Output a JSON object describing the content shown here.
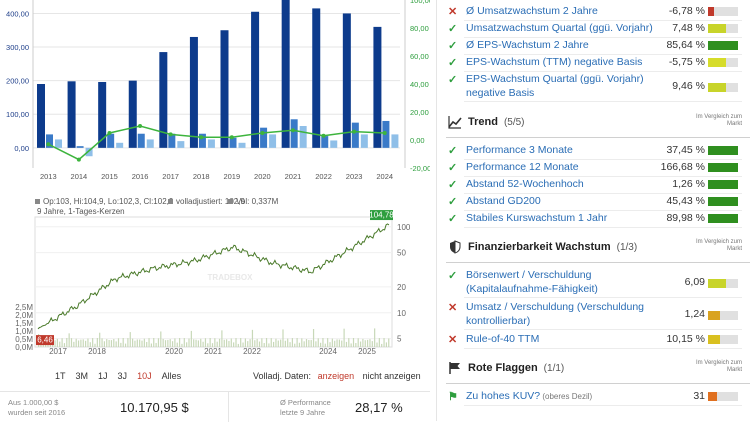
{
  "bar_chart": {
    "chart_data": {
      "type": "bar",
      "categories": [
        "2013",
        "2014",
        "2015",
        "2016",
        "2017",
        "2018",
        "2019",
        "2020",
        "2021",
        "2022",
        "2023",
        "2024"
      ],
      "series": [
        {
          "values": [
            190,
            198,
            196,
            200,
            285,
            330,
            350,
            405,
            445,
            415,
            400,
            360
          ]
        },
        {
          "values": [
            40,
            5,
            42,
            42,
            42,
            42,
            30,
            60,
            85,
            35,
            75,
            80
          ]
        },
        {
          "values": [
            25,
            -25,
            15,
            25,
            20,
            25,
            15,
            40,
            65,
            22,
            40,
            40
          ]
        }
      ],
      "growth_line": [
        -3,
        -14,
        5,
        10,
        4,
        2,
        2,
        5,
        7,
        3,
        6,
        5
      ],
      "y_left_ticks": [
        "0,00",
        "100,00",
        "200,00",
        "300,00",
        "400,00"
      ],
      "y_right_ticks": [
        "-20,00",
        "0,00",
        "20,00",
        "40,00",
        "60,00",
        "80,00",
        "100,00"
      ],
      "ylim": [
        -60,
        440
      ],
      "y2lim": [
        -20,
        100
      ]
    },
    "colors": {
      "dark": "#0d3b8c",
      "mid": "#3a7ac8",
      "light": "#8fbfe8",
      "line": "#3db43d"
    }
  },
  "price_chart": {
    "legend": [
      "Op:103, Hi:104,9, Lo:102,3, Cl:102,9",
      "volladjustiert: 102,9",
      "Vol: 0,337M"
    ],
    "subtitle": "9 Jahre, 1-Tages-Kerzen",
    "watermark": "TRADEBOX",
    "last_price": "104,78",
    "first_price": "6,46",
    "x_ticks": [
      "2017",
      "2018",
      "2020",
      "2021",
      "2022",
      "2024",
      "2025"
    ],
    "y_right_ticks": [
      "100",
      "50",
      "20",
      "10",
      "5"
    ],
    "y_left_ticks": [
      "2,5M",
      "2,0M",
      "1,5M",
      "1,0M",
      "0,5M",
      "0,0M"
    ],
    "chart_data": {
      "type": "line",
      "log_scale": true,
      "x": [
        "2016",
        "2017",
        "2018",
        "2019",
        "2020",
        "2021",
        "2022",
        "2023",
        "2024",
        "2025"
      ],
      "values": [
        6.5,
        12,
        25,
        33,
        40,
        58,
        38,
        30,
        55,
        104.8
      ]
    }
  },
  "ranges": [
    "1T",
    "3M",
    "1J",
    "3J",
    "10J",
    "Alles"
  ],
  "ranges_active": "10J",
  "volladj": {
    "label": "Volladj. Daten:",
    "on": "anzeigen",
    "off": "nicht anzeigen"
  },
  "footer": {
    "left_label_1": "Aus 1.000,00 $",
    "left_label_2": "wurden seit 2016",
    "left_value": "10.170,95 $",
    "right_label_1": "Ø Performance",
    "right_label_2": "letzte 9 Jahre",
    "right_value": "28,17 %"
  },
  "growth_rows": [
    {
      "label": "Ø Umsatzwachstum 2 Jahre",
      "value": "-6,78 %",
      "status": "bad",
      "fill": 0.2,
      "color": "#c0392b"
    },
    {
      "label": "Umsatzwachstum Quartal (ggü. Vorjahr)",
      "value": "7,48 %",
      "status": "ok",
      "fill": 0.6,
      "color": "#c8d42a"
    },
    {
      "label": "Ø EPS-Wachstum 2 Jahre",
      "value": "85,64 %",
      "status": "ok",
      "fill": 1.0,
      "color": "#2f8f1f"
    },
    {
      "label": "EPS-Wachstum (TTM) negative Basis",
      "value": "-5,75 %",
      "status": "ok",
      "fill": 0.6,
      "color": "#d6dc2a"
    },
    {
      "label": "EPS-Wachstum Quartal (ggü. Vorjahr) negative Basis",
      "value": "9,46 %",
      "status": "ok",
      "fill": 0.6,
      "color": "#c8d42a"
    }
  ],
  "trend": {
    "title": "Trend",
    "count": "(5/5)",
    "compare": "Im Vergleich zum Markt",
    "rows": [
      {
        "label": "Performance 3 Monate",
        "value": "37,45 %",
        "status": "ok",
        "fill": 1.0,
        "color": "#2f8f1f"
      },
      {
        "label": "Performance 12 Monate",
        "value": "166,68 %",
        "status": "ok",
        "fill": 1.0,
        "color": "#2f8f1f"
      },
      {
        "label": "Abstand 52-Wochenhoch",
        "value": "1,26 %",
        "status": "ok",
        "fill": 1.0,
        "color": "#2f8f1f"
      },
      {
        "label": "Abstand GD200",
        "value": "45,43 %",
        "status": "ok",
        "fill": 1.0,
        "color": "#2f8f1f"
      },
      {
        "label": "Stabiles Kurswachstum 1 Jahr",
        "value": "89,98 %",
        "status": "ok",
        "fill": 1.0,
        "color": "#2f8f1f"
      }
    ]
  },
  "finance": {
    "title": "Finanzierbarkeit Wachstum",
    "count": "(1/3)",
    "compare": "Im Vergleich zum Markt",
    "rows": [
      {
        "label": "Börsenwert / Verschuldung (Kapitalaufnahme-Fähigkeit)",
        "value": "6,09",
        "status": "ok",
        "fill": 0.6,
        "color": "#c8d42a"
      },
      {
        "label": "Umsatz / Verschuldung (Verschuldung kontrollierbar)",
        "value": "1,24",
        "status": "bad",
        "fill": 0.4,
        "color": "#d9a320"
      },
      {
        "label": "Rule-of-40 TTM",
        "value": "10,15 %",
        "status": "bad",
        "fill": 0.4,
        "color": "#d9c020"
      }
    ]
  },
  "flags": {
    "title": "Rote Flaggen",
    "count": "(1/1)",
    "compare": "Im Vergleich zum Markt",
    "rows": [
      {
        "label": "Zu hohes KUV?",
        "sub": "(oberes Dezil)",
        "value": "31",
        "status": "flag",
        "fill": 0.3,
        "color": "#e07020"
      }
    ]
  }
}
